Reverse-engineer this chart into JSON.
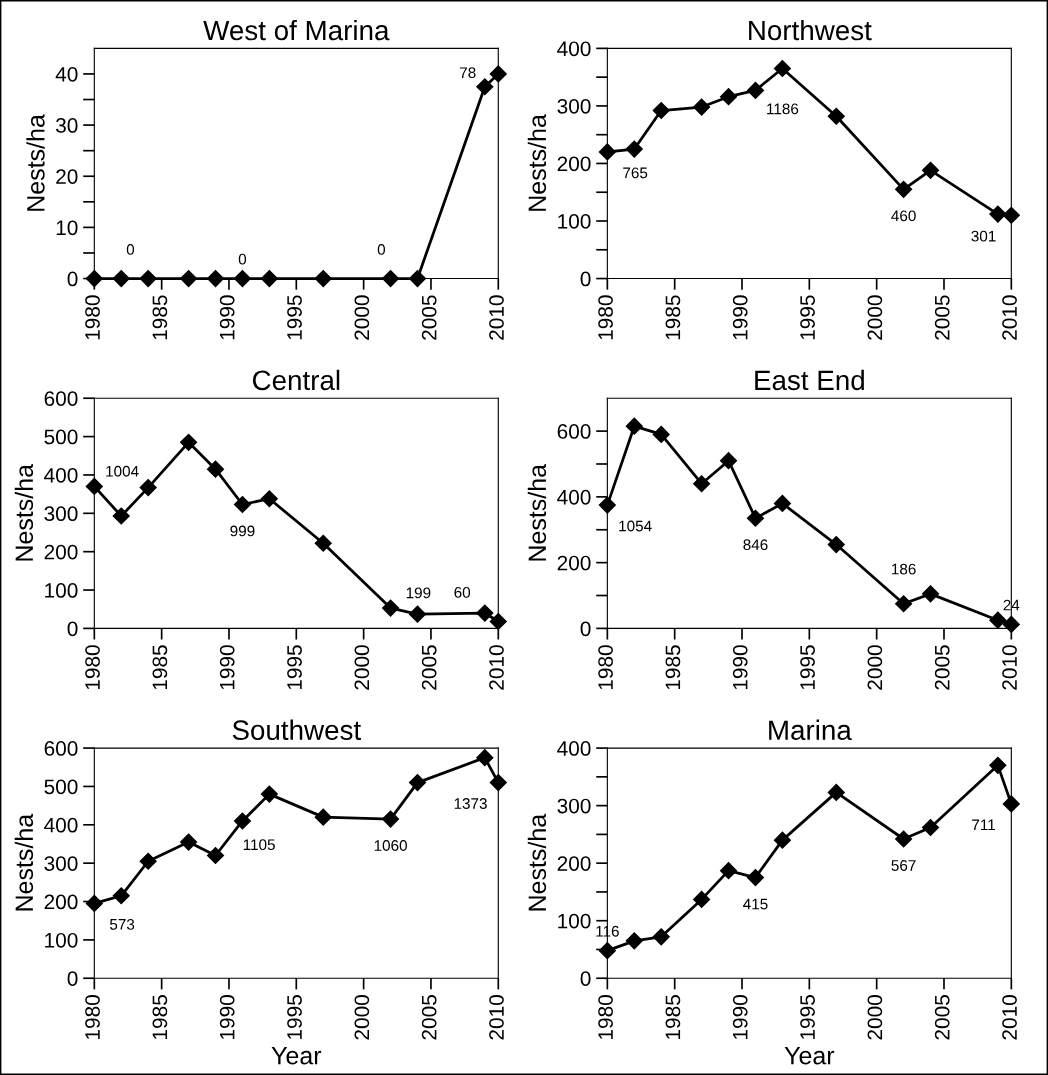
{
  "chart_data": [
    {
      "type": "line",
      "title": "West of Marina",
      "ylabel": "Nests/ha",
      "x": [
        1980,
        1982,
        1984,
        1987,
        1989,
        1991,
        1993,
        1997,
        2002,
        2004,
        2009,
        2010
      ],
      "series": [
        {
          "color": "#000000",
          "values": [
            0,
            0,
            0,
            0,
            0,
            0,
            0,
            0,
            0,
            0,
            37.5,
            40
          ]
        }
      ],
      "xlim": [
        1980,
        2010
      ],
      "xticks": [
        1980,
        1985,
        1990,
        1995,
        2000,
        2005,
        2010
      ],
      "ylim": [
        0,
        45
      ],
      "yticks": [
        0,
        {
          "value": 5,
          "label": null
        },
        10,
        {
          "value": 15,
          "label": null
        },
        20,
        {
          "value": 25,
          "label": null
        },
        30,
        {
          "value": 35,
          "label": null
        },
        40
      ],
      "marker": "diamond",
      "line_style": "solid",
      "grid": false,
      "legend": false,
      "annotations": [
        {
          "text": "0",
          "x": 1980,
          "y": 0
        },
        {
          "text": "0",
          "x": 1991,
          "y": 0
        },
        {
          "text": "0",
          "x": 2004,
          "y": 0
        },
        {
          "text": "78",
          "x": 2010,
          "y": 40
        }
      ]
    },
    {
      "type": "line",
      "title": "Northwest",
      "ylabel": "Nests/ha",
      "x": [
        1980,
        1982,
        1984,
        1987,
        1989,
        1991,
        1993,
        1997,
        2002,
        2004,
        2009,
        2010
      ],
      "series": [
        {
          "color": "#000000",
          "values": [
            220,
            225,
            292,
            298,
            316,
            327,
            365,
            282,
            155,
            188,
            112,
            110
          ]
        }
      ],
      "xlim": [
        1980,
        2010
      ],
      "xticks": [
        1980,
        1985,
        1990,
        1995,
        2000,
        2005,
        2010
      ],
      "ylim": [
        0,
        400
      ],
      "yticks": [
        0,
        {
          "value": 50,
          "label": null
        },
        100,
        {
          "value": 150,
          "label": null
        },
        200,
        {
          "value": 250,
          "label": null
        },
        300,
        {
          "value": 350,
          "label": null
        },
        400
      ],
      "marker": "diamond",
      "line_style": "solid",
      "grid": false,
      "legend": false,
      "annotations": [
        {
          "text": "765",
          "x": 1980,
          "y": 220
        },
        {
          "text": "1186",
          "x": 1993,
          "y": 365
        },
        {
          "text": "460",
          "x": 2002,
          "y": 155
        },
        {
          "text": "301",
          "x": 2010,
          "y": 110
        }
      ]
    },
    {
      "type": "line",
      "title": "Central",
      "ylabel": "Nests/ha",
      "x": [
        1980,
        1982,
        1984,
        1987,
        1989,
        1991,
        1993,
        1997,
        2002,
        2004,
        2009,
        2010
      ],
      "series": [
        {
          "color": "#000000",
          "values": [
            370,
            293,
            367,
            485,
            415,
            323,
            338,
            222,
            53,
            37,
            40,
            18
          ]
        }
      ],
      "xlim": [
        1980,
        2010
      ],
      "xticks": [
        1980,
        1985,
        1990,
        1995,
        2000,
        2005,
        2010
      ],
      "ylim": [
        0,
        600
      ],
      "yticks": [
        0,
        100,
        200,
        300,
        400,
        500,
        600
      ],
      "marker": "diamond",
      "line_style": "solid",
      "grid": false,
      "legend": false,
      "annotations": [
        {
          "text": "1004",
          "x": 1980,
          "y": 370
        },
        {
          "text": "999",
          "x": 1991,
          "y": 323
        },
        {
          "text": "199",
          "x": 2002,
          "y": 53
        },
        {
          "text": "60",
          "x": 2010,
          "y": 18
        }
      ]
    },
    {
      "type": "line",
      "title": "East End",
      "ylabel": "Nests/ha",
      "x": [
        1980,
        1982,
        1984,
        1987,
        1989,
        1991,
        1993,
        1997,
        2002,
        2004,
        2009,
        2010
      ],
      "series": [
        {
          "color": "#000000",
          "values": [
            375,
            615,
            590,
            440,
            510,
            335,
            380,
            255,
            75,
            105,
            25,
            12
          ]
        }
      ],
      "xlim": [
        1980,
        2010
      ],
      "xticks": [
        1980,
        1985,
        1990,
        1995,
        2000,
        2005,
        2010
      ],
      "ylim": [
        0,
        700
      ],
      "yticks": [
        0,
        {
          "value": 100,
          "label": null
        },
        200,
        {
          "value": 300,
          "label": null
        },
        400,
        {
          "value": 500,
          "label": null
        },
        600
      ],
      "marker": "diamond",
      "line_style": "solid",
      "grid": false,
      "legend": false,
      "annotations": [
        {
          "text": "1054",
          "x": 1980,
          "y": 375
        },
        {
          "text": "846",
          "x": 1991,
          "y": 335
        },
        {
          "text": "186",
          "x": 2002,
          "y": 75
        },
        {
          "text": "24",
          "x": 2010,
          "y": 12
        }
      ]
    },
    {
      "type": "line",
      "title": "Southwest",
      "xlabel": "Year",
      "ylabel": "Nests/ha",
      "x": [
        1980,
        1982,
        1984,
        1987,
        1989,
        1991,
        1993,
        1997,
        2002,
        2004,
        2009,
        2010
      ],
      "series": [
        {
          "color": "#000000",
          "values": [
            195,
            215,
            305,
            355,
            320,
            410,
            480,
            420,
            415,
            510,
            575,
            510
          ]
        }
      ],
      "xlim": [
        1980,
        2010
      ],
      "xticks": [
        1980,
        1985,
        1990,
        1995,
        2000,
        2005,
        2010
      ],
      "ylim": [
        0,
        600
      ],
      "yticks": [
        0,
        100,
        200,
        300,
        400,
        500,
        600
      ],
      "marker": "diamond",
      "line_style": "solid",
      "grid": false,
      "legend": false,
      "annotations": [
        {
          "text": "573",
          "x": 1980,
          "y": 195
        },
        {
          "text": "1105",
          "x": 1991,
          "y": 410
        },
        {
          "text": "1060",
          "x": 2002,
          "y": 415
        },
        {
          "text": "1373",
          "x": 2010,
          "y": 510
        }
      ]
    },
    {
      "type": "line",
      "title": "Marina",
      "xlabel": "Year",
      "ylabel": "Nests/ha",
      "x": [
        1980,
        1982,
        1984,
        1987,
        1989,
        1991,
        1993,
        1997,
        2002,
        2004,
        2009,
        2010
      ],
      "series": [
        {
          "color": "#000000",
          "values": [
            48,
            65,
            72,
            137,
            187,
            175,
            240,
            323,
            242,
            262,
            370,
            303
          ]
        }
      ],
      "xlim": [
        1980,
        2010
      ],
      "xticks": [
        1980,
        1985,
        1990,
        1995,
        2000,
        2005,
        2010
      ],
      "ylim": [
        0,
        400
      ],
      "yticks": [
        0,
        {
          "value": 50,
          "label": null
        },
        100,
        {
          "value": 150,
          "label": null
        },
        200,
        {
          "value": 250,
          "label": null
        },
        300,
        {
          "value": 350,
          "label": null
        },
        400
      ],
      "marker": "diamond",
      "line_style": "solid",
      "grid": false,
      "legend": false,
      "annotations": [
        {
          "text": "116",
          "x": 1980,
          "y": 48
        },
        {
          "text": "415",
          "x": 1991,
          "y": 175
        },
        {
          "text": "567",
          "x": 2002,
          "y": 242
        },
        {
          "text": "711",
          "x": 2010,
          "y": 303
        }
      ]
    }
  ]
}
